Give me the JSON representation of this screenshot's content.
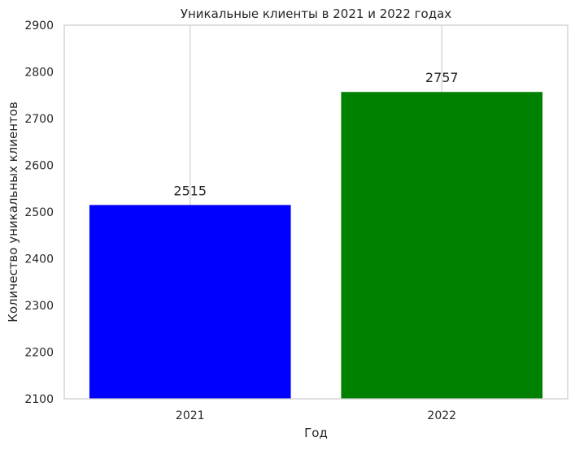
{
  "chart_data": {
    "type": "bar",
    "title": "Уникальные клиенты в 2021 и 2022 годах",
    "xlabel": "Год",
    "ylabel": "Количество уникальных клиентов",
    "categories": [
      "2021",
      "2022"
    ],
    "values": [
      2515,
      2757
    ],
    "data_labels": [
      "2515",
      "2757"
    ],
    "colors": [
      "#0000ff",
      "#008000"
    ],
    "ylim": [
      2100,
      2900
    ],
    "yticks": [
      2100,
      2200,
      2300,
      2400,
      2500,
      2600,
      2700,
      2800,
      2900
    ],
    "ytick_labels": [
      "2100",
      "2200",
      "2300",
      "2400",
      "2500",
      "2600",
      "2700",
      "2800",
      "2900"
    ],
    "grid": {
      "x": true,
      "y": false
    },
    "legend": "none"
  }
}
